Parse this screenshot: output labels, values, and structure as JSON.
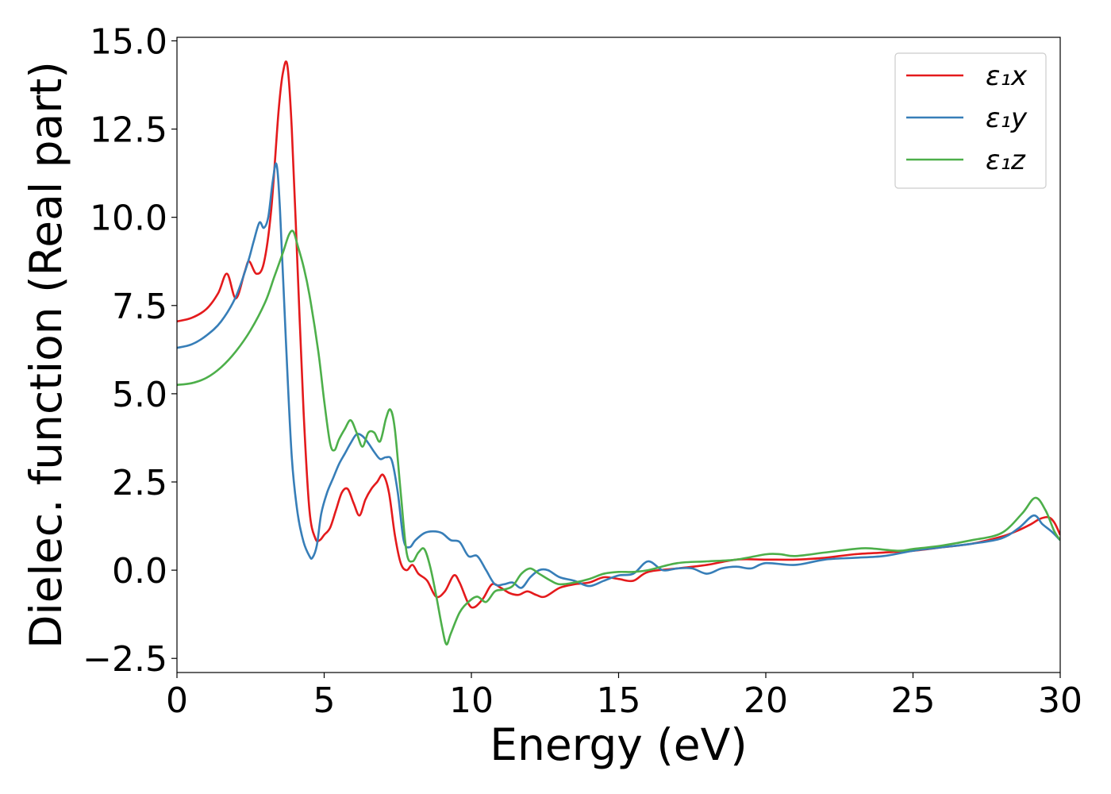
{
  "chart_data": {
    "type": "line",
    "xlabel": "Energy (eV)",
    "ylabel": "Dielec. function (Real part)",
    "xlim": [
      0,
      30
    ],
    "ylim": [
      -2.9,
      15.1
    ],
    "xticks": [
      0,
      5,
      10,
      15,
      20,
      25,
      30
    ],
    "xtick_labels": [
      "0",
      "5",
      "10",
      "15",
      "20",
      "25",
      "30"
    ],
    "yticks": [
      -2.5,
      0.0,
      2.5,
      5.0,
      7.5,
      10.0,
      12.5,
      15.0
    ],
    "ytick_labels": [
      "−2.5",
      "0.0",
      "2.5",
      "5.0",
      "7.5",
      "10.0",
      "12.5",
      "15.0"
    ],
    "grid": false,
    "legend_position": "top-right",
    "series": [
      {
        "name": "ε₁x",
        "color": "#e41a1c",
        "x": [
          0,
          0.5,
          1.0,
          1.4,
          1.7,
          2.0,
          2.3,
          2.45,
          2.7,
          2.95,
          3.2,
          3.45,
          3.6,
          3.75,
          3.9,
          4.1,
          4.3,
          4.5,
          4.7,
          4.85,
          5.0,
          5.2,
          5.4,
          5.6,
          5.8,
          6.0,
          6.2,
          6.4,
          6.6,
          6.8,
          7.0,
          7.2,
          7.4,
          7.6,
          7.8,
          8.0,
          8.2,
          8.5,
          8.8,
          9.1,
          9.4,
          9.6,
          9.9,
          10.1,
          10.4,
          10.7,
          11.0,
          11.3,
          11.6,
          11.9,
          12.2,
          12.5,
          13.0,
          13.5,
          14.0,
          14.5,
          15.0,
          15.5,
          16.0,
          17.0,
          18.0,
          19.0,
          20.0,
          21.0,
          22.0,
          23.0,
          24.0,
          25.0,
          26.0,
          27.0,
          28.0,
          28.5,
          29.0,
          29.3,
          29.6,
          29.8,
          30.0
        ],
        "y": [
          7.05,
          7.15,
          7.4,
          7.85,
          8.4,
          7.7,
          8.45,
          8.75,
          8.4,
          8.7,
          10.2,
          13.0,
          14.1,
          14.3,
          12.5,
          8.5,
          4.5,
          1.7,
          0.9,
          0.85,
          1.0,
          1.2,
          1.7,
          2.2,
          2.3,
          1.9,
          1.55,
          2.0,
          2.3,
          2.5,
          2.7,
          2.2,
          1.0,
          0.2,
          0.0,
          0.15,
          -0.1,
          -0.3,
          -0.75,
          -0.6,
          -0.15,
          -0.35,
          -0.95,
          -1.05,
          -0.8,
          -0.4,
          -0.5,
          -0.65,
          -0.7,
          -0.6,
          -0.7,
          -0.75,
          -0.5,
          -0.4,
          -0.35,
          -0.2,
          -0.25,
          -0.3,
          -0.05,
          0.05,
          0.15,
          0.3,
          0.3,
          0.3,
          0.35,
          0.45,
          0.5,
          0.55,
          0.65,
          0.75,
          0.95,
          1.1,
          1.3,
          1.45,
          1.5,
          1.35,
          1.0
        ]
      },
      {
        "name": "ε₁y",
        "color": "#377eb8",
        "x": [
          0,
          0.5,
          1.0,
          1.5,
          2.0,
          2.4,
          2.6,
          2.8,
          2.95,
          3.1,
          3.25,
          3.38,
          3.5,
          3.7,
          3.9,
          4.1,
          4.3,
          4.5,
          4.6,
          4.75,
          4.9,
          5.1,
          5.3,
          5.5,
          5.7,
          5.9,
          6.1,
          6.3,
          6.5,
          6.7,
          6.9,
          7.1,
          7.3,
          7.5,
          7.7,
          7.9,
          8.1,
          8.4,
          8.7,
          9.0,
          9.3,
          9.6,
          9.9,
          10.2,
          10.5,
          10.8,
          11.1,
          11.4,
          11.7,
          12.0,
          12.3,
          12.6,
          13.0,
          13.5,
          14.0,
          14.5,
          15.0,
          15.5,
          16.0,
          16.5,
          17.0,
          17.5,
          18.0,
          18.5,
          19.0,
          19.5,
          20.0,
          21.0,
          22.0,
          23.0,
          24.0,
          25.0,
          26.0,
          27.0,
          28.0,
          28.6,
          29.1,
          29.4,
          29.7,
          30.0
        ],
        "y": [
          6.3,
          6.4,
          6.65,
          7.05,
          7.75,
          8.7,
          9.3,
          9.85,
          9.7,
          10.0,
          11.0,
          11.5,
          10.2,
          6.5,
          3.2,
          1.6,
          0.8,
          0.4,
          0.35,
          0.7,
          1.6,
          2.2,
          2.6,
          3.0,
          3.3,
          3.6,
          3.85,
          3.8,
          3.6,
          3.35,
          3.15,
          3.2,
          3.1,
          2.2,
          0.85,
          0.65,
          0.85,
          1.05,
          1.1,
          1.05,
          0.85,
          0.8,
          0.4,
          0.4,
          0.0,
          -0.4,
          -0.4,
          -0.35,
          -0.5,
          -0.2,
          0.0,
          0.0,
          -0.2,
          -0.3,
          -0.45,
          -0.3,
          -0.15,
          -0.1,
          0.25,
          0.0,
          0.05,
          0.05,
          -0.1,
          0.05,
          0.1,
          0.05,
          0.2,
          0.15,
          0.3,
          0.35,
          0.4,
          0.55,
          0.65,
          0.75,
          0.9,
          1.2,
          1.55,
          1.3,
          1.1,
          0.85
        ]
      },
      {
        "name": "ε₁z",
        "color": "#4daf4a",
        "x": [
          0,
          0.5,
          1.0,
          1.5,
          2.0,
          2.5,
          3.0,
          3.3,
          3.6,
          3.8,
          3.95,
          4.1,
          4.3,
          4.5,
          4.8,
          5.0,
          5.2,
          5.35,
          5.5,
          5.7,
          5.9,
          6.1,
          6.3,
          6.5,
          6.7,
          6.9,
          7.1,
          7.25,
          7.4,
          7.6,
          7.8,
          8.0,
          8.2,
          8.4,
          8.6,
          8.8,
          9.0,
          9.15,
          9.3,
          9.6,
          9.9,
          10.2,
          10.5,
          10.8,
          11.1,
          11.4,
          11.7,
          12.0,
          12.3,
          12.7,
          13.0,
          13.5,
          14.0,
          14.5,
          15.0,
          15.5,
          16.0,
          17.0,
          18.0,
          19.0,
          20.0,
          20.5,
          21.0,
          22.0,
          23.0,
          23.5,
          24.5,
          25.0,
          26.0,
          27.0,
          28.0,
          28.7,
          29.15,
          29.5,
          29.8,
          30.0
        ],
        "y": [
          5.25,
          5.3,
          5.45,
          5.75,
          6.2,
          6.8,
          7.6,
          8.3,
          9.0,
          9.5,
          9.6,
          9.2,
          8.6,
          7.8,
          6.2,
          4.8,
          3.6,
          3.4,
          3.7,
          4.0,
          4.25,
          3.9,
          3.5,
          3.9,
          3.9,
          3.65,
          4.3,
          4.55,
          4.0,
          2.2,
          0.5,
          0.25,
          0.5,
          0.6,
          0.1,
          -0.7,
          -1.6,
          -2.1,
          -1.8,
          -1.2,
          -0.9,
          -0.75,
          -0.9,
          -0.6,
          -0.55,
          -0.45,
          -0.1,
          0.05,
          -0.1,
          -0.3,
          -0.4,
          -0.35,
          -0.25,
          -0.1,
          -0.05,
          -0.05,
          0.0,
          0.2,
          0.25,
          0.3,
          0.45,
          0.45,
          0.4,
          0.5,
          0.6,
          0.62,
          0.55,
          0.6,
          0.7,
          0.85,
          1.05,
          1.6,
          2.05,
          1.7,
          1.1,
          0.85
        ]
      }
    ]
  }
}
